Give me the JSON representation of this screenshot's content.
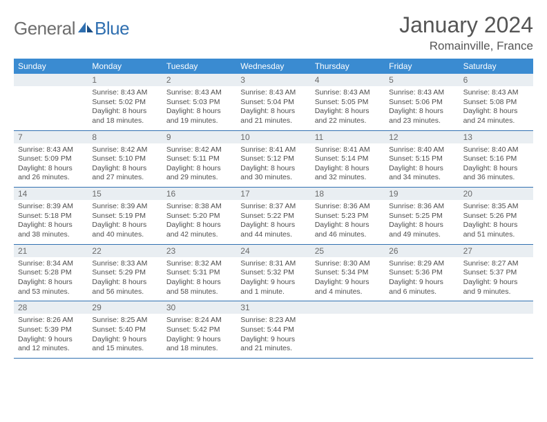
{
  "logo": {
    "part1": "General",
    "part2": "Blue"
  },
  "title": "January 2024",
  "location": "Romainville, France",
  "colors": {
    "header_bg": "#3a8bd1",
    "header_text": "#ffffff",
    "daynum_bg": "#e9eef2",
    "daynum_text": "#6a6a6a",
    "body_text": "#4d4d4d",
    "border": "#2f6fb0",
    "logo_gray": "#6d6d6d",
    "logo_blue": "#2f6fb0",
    "title_color": "#555555"
  },
  "day_labels": [
    "Sunday",
    "Monday",
    "Tuesday",
    "Wednesday",
    "Thursday",
    "Friday",
    "Saturday"
  ],
  "weeks": [
    [
      {
        "num": "",
        "sunrise": "",
        "sunset": "",
        "daylight1": "",
        "daylight2": ""
      },
      {
        "num": "1",
        "sunrise": "Sunrise: 8:43 AM",
        "sunset": "Sunset: 5:02 PM",
        "daylight1": "Daylight: 8 hours",
        "daylight2": "and 18 minutes."
      },
      {
        "num": "2",
        "sunrise": "Sunrise: 8:43 AM",
        "sunset": "Sunset: 5:03 PM",
        "daylight1": "Daylight: 8 hours",
        "daylight2": "and 19 minutes."
      },
      {
        "num": "3",
        "sunrise": "Sunrise: 8:43 AM",
        "sunset": "Sunset: 5:04 PM",
        "daylight1": "Daylight: 8 hours",
        "daylight2": "and 21 minutes."
      },
      {
        "num": "4",
        "sunrise": "Sunrise: 8:43 AM",
        "sunset": "Sunset: 5:05 PM",
        "daylight1": "Daylight: 8 hours",
        "daylight2": "and 22 minutes."
      },
      {
        "num": "5",
        "sunrise": "Sunrise: 8:43 AM",
        "sunset": "Sunset: 5:06 PM",
        "daylight1": "Daylight: 8 hours",
        "daylight2": "and 23 minutes."
      },
      {
        "num": "6",
        "sunrise": "Sunrise: 8:43 AM",
        "sunset": "Sunset: 5:08 PM",
        "daylight1": "Daylight: 8 hours",
        "daylight2": "and 24 minutes."
      }
    ],
    [
      {
        "num": "7",
        "sunrise": "Sunrise: 8:43 AM",
        "sunset": "Sunset: 5:09 PM",
        "daylight1": "Daylight: 8 hours",
        "daylight2": "and 26 minutes."
      },
      {
        "num": "8",
        "sunrise": "Sunrise: 8:42 AM",
        "sunset": "Sunset: 5:10 PM",
        "daylight1": "Daylight: 8 hours",
        "daylight2": "and 27 minutes."
      },
      {
        "num": "9",
        "sunrise": "Sunrise: 8:42 AM",
        "sunset": "Sunset: 5:11 PM",
        "daylight1": "Daylight: 8 hours",
        "daylight2": "and 29 minutes."
      },
      {
        "num": "10",
        "sunrise": "Sunrise: 8:41 AM",
        "sunset": "Sunset: 5:12 PM",
        "daylight1": "Daylight: 8 hours",
        "daylight2": "and 30 minutes."
      },
      {
        "num": "11",
        "sunrise": "Sunrise: 8:41 AM",
        "sunset": "Sunset: 5:14 PM",
        "daylight1": "Daylight: 8 hours",
        "daylight2": "and 32 minutes."
      },
      {
        "num": "12",
        "sunrise": "Sunrise: 8:40 AM",
        "sunset": "Sunset: 5:15 PM",
        "daylight1": "Daylight: 8 hours",
        "daylight2": "and 34 minutes."
      },
      {
        "num": "13",
        "sunrise": "Sunrise: 8:40 AM",
        "sunset": "Sunset: 5:16 PM",
        "daylight1": "Daylight: 8 hours",
        "daylight2": "and 36 minutes."
      }
    ],
    [
      {
        "num": "14",
        "sunrise": "Sunrise: 8:39 AM",
        "sunset": "Sunset: 5:18 PM",
        "daylight1": "Daylight: 8 hours",
        "daylight2": "and 38 minutes."
      },
      {
        "num": "15",
        "sunrise": "Sunrise: 8:39 AM",
        "sunset": "Sunset: 5:19 PM",
        "daylight1": "Daylight: 8 hours",
        "daylight2": "and 40 minutes."
      },
      {
        "num": "16",
        "sunrise": "Sunrise: 8:38 AM",
        "sunset": "Sunset: 5:20 PM",
        "daylight1": "Daylight: 8 hours",
        "daylight2": "and 42 minutes."
      },
      {
        "num": "17",
        "sunrise": "Sunrise: 8:37 AM",
        "sunset": "Sunset: 5:22 PM",
        "daylight1": "Daylight: 8 hours",
        "daylight2": "and 44 minutes."
      },
      {
        "num": "18",
        "sunrise": "Sunrise: 8:36 AM",
        "sunset": "Sunset: 5:23 PM",
        "daylight1": "Daylight: 8 hours",
        "daylight2": "and 46 minutes."
      },
      {
        "num": "19",
        "sunrise": "Sunrise: 8:36 AM",
        "sunset": "Sunset: 5:25 PM",
        "daylight1": "Daylight: 8 hours",
        "daylight2": "and 49 minutes."
      },
      {
        "num": "20",
        "sunrise": "Sunrise: 8:35 AM",
        "sunset": "Sunset: 5:26 PM",
        "daylight1": "Daylight: 8 hours",
        "daylight2": "and 51 minutes."
      }
    ],
    [
      {
        "num": "21",
        "sunrise": "Sunrise: 8:34 AM",
        "sunset": "Sunset: 5:28 PM",
        "daylight1": "Daylight: 8 hours",
        "daylight2": "and 53 minutes."
      },
      {
        "num": "22",
        "sunrise": "Sunrise: 8:33 AM",
        "sunset": "Sunset: 5:29 PM",
        "daylight1": "Daylight: 8 hours",
        "daylight2": "and 56 minutes."
      },
      {
        "num": "23",
        "sunrise": "Sunrise: 8:32 AM",
        "sunset": "Sunset: 5:31 PM",
        "daylight1": "Daylight: 8 hours",
        "daylight2": "and 58 minutes."
      },
      {
        "num": "24",
        "sunrise": "Sunrise: 8:31 AM",
        "sunset": "Sunset: 5:32 PM",
        "daylight1": "Daylight: 9 hours",
        "daylight2": "and 1 minute."
      },
      {
        "num": "25",
        "sunrise": "Sunrise: 8:30 AM",
        "sunset": "Sunset: 5:34 PM",
        "daylight1": "Daylight: 9 hours",
        "daylight2": "and 4 minutes."
      },
      {
        "num": "26",
        "sunrise": "Sunrise: 8:29 AM",
        "sunset": "Sunset: 5:36 PM",
        "daylight1": "Daylight: 9 hours",
        "daylight2": "and 6 minutes."
      },
      {
        "num": "27",
        "sunrise": "Sunrise: 8:27 AM",
        "sunset": "Sunset: 5:37 PM",
        "daylight1": "Daylight: 9 hours",
        "daylight2": "and 9 minutes."
      }
    ],
    [
      {
        "num": "28",
        "sunrise": "Sunrise: 8:26 AM",
        "sunset": "Sunset: 5:39 PM",
        "daylight1": "Daylight: 9 hours",
        "daylight2": "and 12 minutes."
      },
      {
        "num": "29",
        "sunrise": "Sunrise: 8:25 AM",
        "sunset": "Sunset: 5:40 PM",
        "daylight1": "Daylight: 9 hours",
        "daylight2": "and 15 minutes."
      },
      {
        "num": "30",
        "sunrise": "Sunrise: 8:24 AM",
        "sunset": "Sunset: 5:42 PM",
        "daylight1": "Daylight: 9 hours",
        "daylight2": "and 18 minutes."
      },
      {
        "num": "31",
        "sunrise": "Sunrise: 8:23 AM",
        "sunset": "Sunset: 5:44 PM",
        "daylight1": "Daylight: 9 hours",
        "daylight2": "and 21 minutes."
      },
      {
        "num": "",
        "sunrise": "",
        "sunset": "",
        "daylight1": "",
        "daylight2": ""
      },
      {
        "num": "",
        "sunrise": "",
        "sunset": "",
        "daylight1": "",
        "daylight2": ""
      },
      {
        "num": "",
        "sunrise": "",
        "sunset": "",
        "daylight1": "",
        "daylight2": ""
      }
    ]
  ]
}
